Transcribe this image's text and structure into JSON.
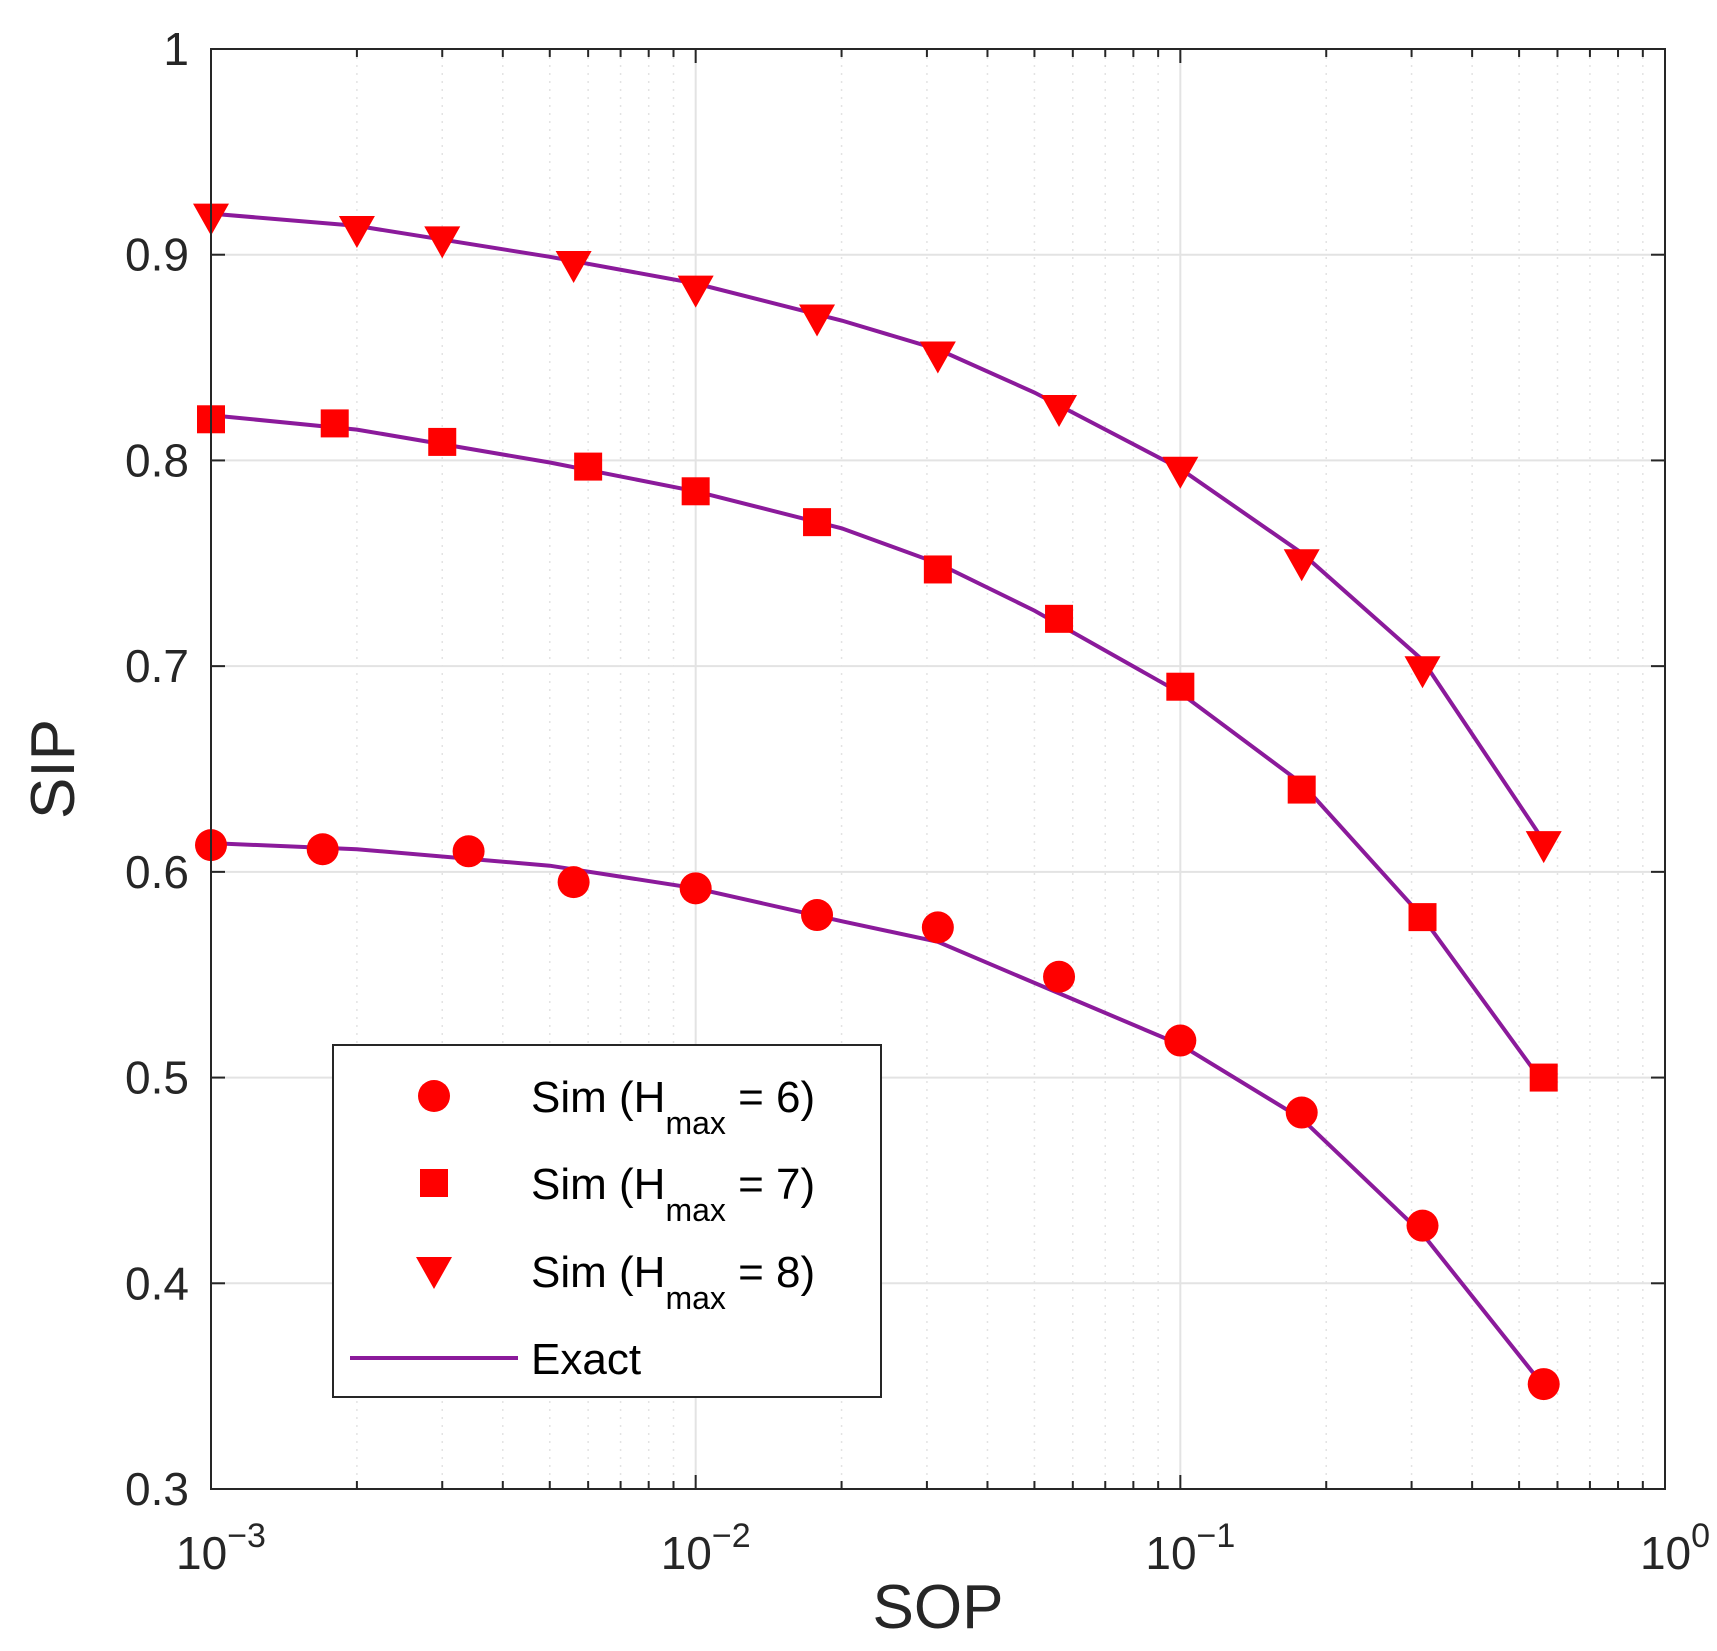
{
  "chart_data": {
    "type": "line",
    "xscale": "log",
    "xlabel": "SOP",
    "ylabel": "SIP",
    "xlim": [
      0.001,
      1
    ],
    "ylim": [
      0.3,
      1
    ],
    "grid": true,
    "minor_grid_x": true,
    "legend_position": "lower-left",
    "colors": {
      "marker": "#ff0000",
      "line": "#8b1a9b",
      "grid": "#e3e3e3",
      "axis": "#262626"
    },
    "yticks": [
      {
        "value": 0.3,
        "label": "0.3"
      },
      {
        "value": 0.4,
        "label": "0.4"
      },
      {
        "value": 0.5,
        "label": "0.5"
      },
      {
        "value": 0.6,
        "label": "0.6"
      },
      {
        "value": 0.7,
        "label": "0.7"
      },
      {
        "value": 0.8,
        "label": "0.8"
      },
      {
        "value": 0.9,
        "label": "0.9"
      },
      {
        "value": 1.0,
        "label": "1"
      }
    ],
    "xticks": [
      {
        "value": 0.001,
        "base": "10",
        "exp": "−3"
      },
      {
        "value": 0.01,
        "base": "10",
        "exp": "−2"
      },
      {
        "value": 0.1,
        "base": "10",
        "exp": "−1"
      },
      {
        "value": 1,
        "base": "10",
        "exp": "0"
      }
    ],
    "series": [
      {
        "name": "Sim (Hmax = 6)",
        "hmax": "6",
        "marker": "circle",
        "x": [
          0.001,
          0.0017,
          0.0034,
          0.0056,
          0.01,
          0.0178,
          0.0316,
          0.0562,
          0.1,
          0.178,
          0.316,
          0.562
        ],
        "y": [
          0.613,
          0.611,
          0.61,
          0.595,
          0.592,
          0.579,
          0.573,
          0.549,
          0.518,
          0.483,
          0.428,
          0.351
        ]
      },
      {
        "name": "Sim (Hmax = 7)",
        "hmax": "7",
        "marker": "square",
        "x": [
          0.001,
          0.0018,
          0.003,
          0.006,
          0.01,
          0.0178,
          0.0316,
          0.0562,
          0.1,
          0.178,
          0.316,
          0.562
        ],
        "y": [
          0.82,
          0.818,
          0.809,
          0.797,
          0.785,
          0.77,
          0.747,
          0.723,
          0.69,
          0.64,
          0.578,
          0.5
        ]
      },
      {
        "name": "Sim (Hmax = 8)",
        "hmax": "8",
        "marker": "triangle-down",
        "x": [
          0.001,
          0.002,
          0.003,
          0.0056,
          0.01,
          0.0178,
          0.0316,
          0.0562,
          0.1,
          0.178,
          0.316,
          0.562
        ],
        "y": [
          0.918,
          0.912,
          0.907,
          0.895,
          0.883,
          0.869,
          0.851,
          0.825,
          0.795,
          0.75,
          0.698,
          0.613
        ]
      }
    ],
    "exact": [
      {
        "x": [
          0.001,
          0.002,
          0.005,
          0.01,
          0.02,
          0.0316,
          0.05,
          0.1,
          0.178,
          0.316,
          0.562
        ],
        "y": [
          0.614,
          0.611,
          0.603,
          0.592,
          0.576,
          0.566,
          0.546,
          0.516,
          0.48,
          0.424,
          0.35
        ]
      },
      {
        "x": [
          0.001,
          0.002,
          0.005,
          0.01,
          0.02,
          0.0316,
          0.05,
          0.1,
          0.178,
          0.316,
          0.562
        ],
        "y": [
          0.822,
          0.815,
          0.799,
          0.785,
          0.767,
          0.75,
          0.727,
          0.687,
          0.643,
          0.578,
          0.497
        ]
      },
      {
        "x": [
          0.001,
          0.002,
          0.005,
          0.01,
          0.02,
          0.0316,
          0.05,
          0.1,
          0.178,
          0.316,
          0.562
        ],
        "y": [
          0.92,
          0.914,
          0.899,
          0.886,
          0.868,
          0.854,
          0.833,
          0.796,
          0.755,
          0.703,
          0.615
        ]
      }
    ],
    "legend": [
      {
        "prefix": "Sim (H",
        "sub": "max",
        "suffix": " = 6)",
        "marker": "circle"
      },
      {
        "prefix": "Sim (H",
        "sub": "max",
        "suffix": " = 7)",
        "marker": "square"
      },
      {
        "prefix": "Sim (H",
        "sub": "max",
        "suffix": " = 8)",
        "marker": "triangle-down"
      },
      {
        "prefix": "Exact",
        "sub": "",
        "suffix": "",
        "marker": "line"
      }
    ]
  }
}
